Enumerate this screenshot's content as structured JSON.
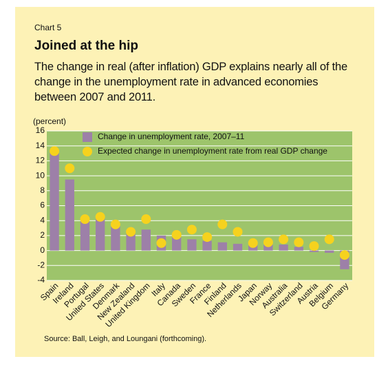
{
  "chart_data": {
    "type": "bar",
    "kicker": "Chart 5",
    "title": "Joined at the hip",
    "subtitle": "The change in real (after inflation) GDP explains nearly all of the change in the unemployment rate in advanced economies between 2007 and 2011.",
    "y_label": "(percent)",
    "source": "Source: Ball, Leigh, and Loungani (forthcoming).",
    "categories": [
      "Spain",
      "Ireland",
      "Portugal",
      "United States",
      "Denmark",
      "New Zealand",
      "United Kingdom",
      "Italy",
      "Canada",
      "Sweden",
      "France",
      "Finland",
      "Netherlands",
      "Japan",
      "Norway",
      "Australia",
      "Switzerland",
      "Austria",
      "Belgium",
      "Germany"
    ],
    "series": [
      {
        "name": "Change in unemployment rate, 2007–11",
        "color": "#9d80a8",
        "mark": "bar",
        "values": [
          13,
          9.5,
          4,
          4.5,
          3.3,
          2.5,
          2.8,
          2,
          1.8,
          1.5,
          1.3,
          1.1,
          0.9,
          0.7,
          0.8,
          0.8,
          0.5,
          -0.2,
          -0.3,
          -2.5
        ]
      },
      {
        "name": "Expected change in unemployment rate from real GDP change",
        "color": "#f6d21e",
        "mark": "dot",
        "values": [
          13.3,
          11,
          4.2,
          4.5,
          3.5,
          2.5,
          4.2,
          1,
          2.1,
          2.8,
          1.8,
          3.5,
          2.5,
          1,
          1.1,
          1.5,
          1.1,
          0.6,
          1.5,
          -0.6
        ]
      }
    ],
    "ylim": [
      -4,
      16
    ],
    "yticks": [
      -4,
      -2,
      0,
      2,
      4,
      6,
      8,
      10,
      12,
      14,
      16
    ],
    "grid": true,
    "legend": "upper left",
    "plot_color": "#9dc46b"
  }
}
